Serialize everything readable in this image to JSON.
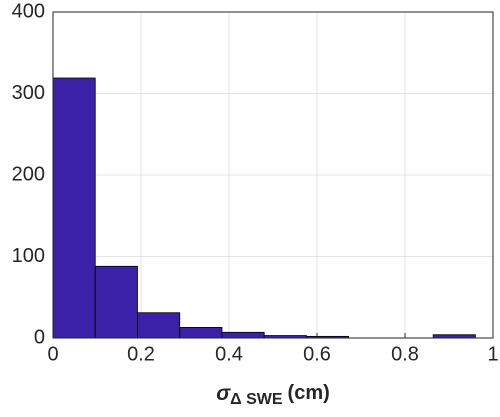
{
  "chart_data": {
    "type": "histogram",
    "xlabel": {
      "symbol": "σ",
      "subscript": "Δ SWE",
      "unit": "(cm)"
    },
    "bins": [
      0,
      0.096,
      0.192,
      0.288,
      0.384,
      0.48,
      0.576,
      0.672,
      0.768,
      0.864,
      0.96
    ],
    "values": [
      319,
      88,
      31,
      13,
      7,
      3,
      2,
      0,
      0,
      4
    ],
    "color": "#3a21a8",
    "xlim": [
      0,
      1
    ],
    "xticks": [
      0,
      0.2,
      0.4,
      0.6,
      0.8,
      1
    ],
    "ylim": [
      0,
      400
    ],
    "yticks": [
      0,
      100,
      200,
      300,
      400
    ],
    "grid": true
  }
}
